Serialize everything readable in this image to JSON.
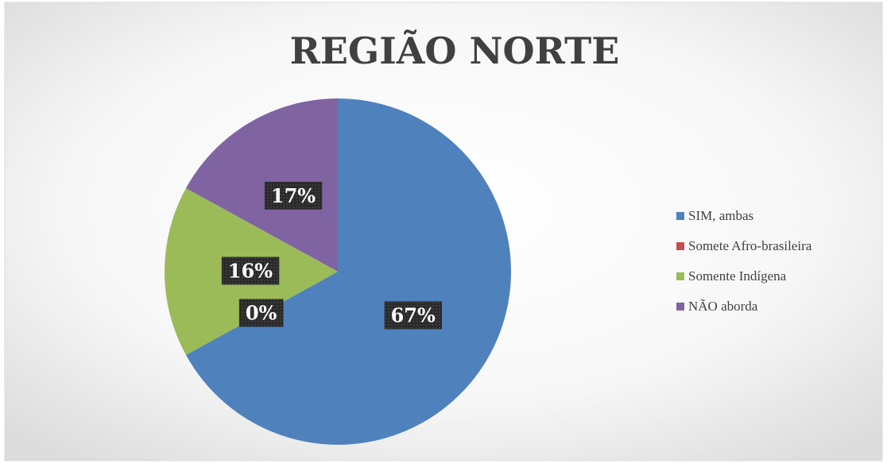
{
  "chart_data": {
    "type": "pie",
    "title": "REGIÃO NORTE",
    "categories": [
      "SIM, ambas",
      "Somete Afro-brasileira",
      "Somente Indígena",
      "NÃO aborda"
    ],
    "values": [
      67,
      0,
      16,
      17
    ],
    "value_labels": [
      "67%",
      "0%",
      "16%",
      "17%"
    ],
    "colors": [
      "#4f81bd",
      "#c0504d",
      "#9bbb59",
      "#8064a2"
    ],
    "legend": "right"
  }
}
